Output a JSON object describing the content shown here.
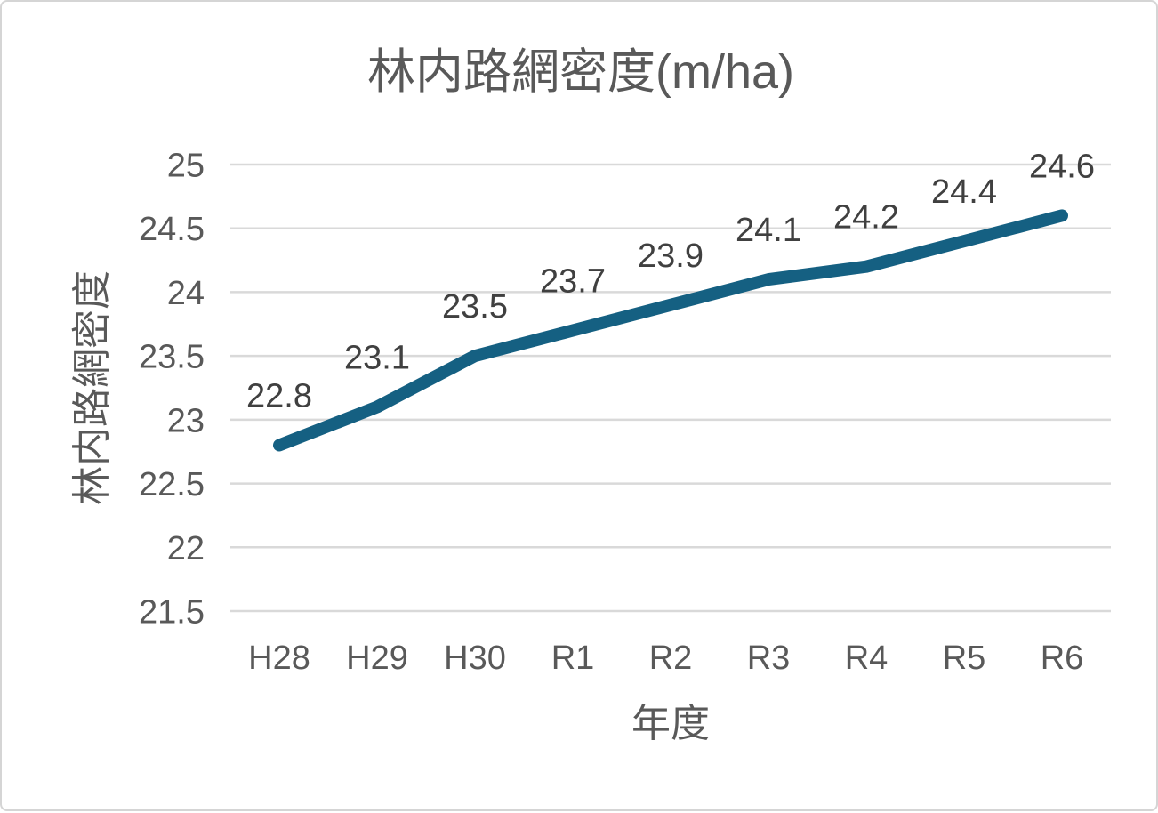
{
  "chart_data": {
    "type": "line",
    "title": "林内路網密度(m/ha)",
    "xlabel": "年度",
    "ylabel": "林内路網密度",
    "categories": [
      "H28",
      "H29",
      "H30",
      "R1",
      "R2",
      "R3",
      "R4",
      "R5",
      "R6"
    ],
    "series": [
      {
        "name": "林内路網密度",
        "values": [
          22.8,
          23.1,
          23.5,
          23.7,
          23.9,
          24.1,
          24.2,
          24.4,
          24.6
        ]
      }
    ],
    "data_labels": [
      "22.8",
      "23.1",
      "23.5",
      "23.7",
      "23.9",
      "24.1",
      "24.2",
      "24.4",
      "24.6"
    ],
    "y_ticks": [
      25,
      24.5,
      24,
      23.5,
      23,
      22.5,
      22,
      21.5
    ],
    "y_tick_labels": [
      "25",
      "24.5",
      "24",
      "23.5",
      "23",
      "22.5",
      "22",
      "21.5"
    ],
    "ylim": [
      21.5,
      25
    ],
    "grid": true,
    "legend": "none",
    "colors": {
      "line": "#156082",
      "grid": "#D9D9D9",
      "axis_text": "#595959",
      "title_text": "#595959",
      "data_label_text": "#404040",
      "background": "#FFFFFF",
      "frame_border": "#D5D5D5"
    }
  }
}
